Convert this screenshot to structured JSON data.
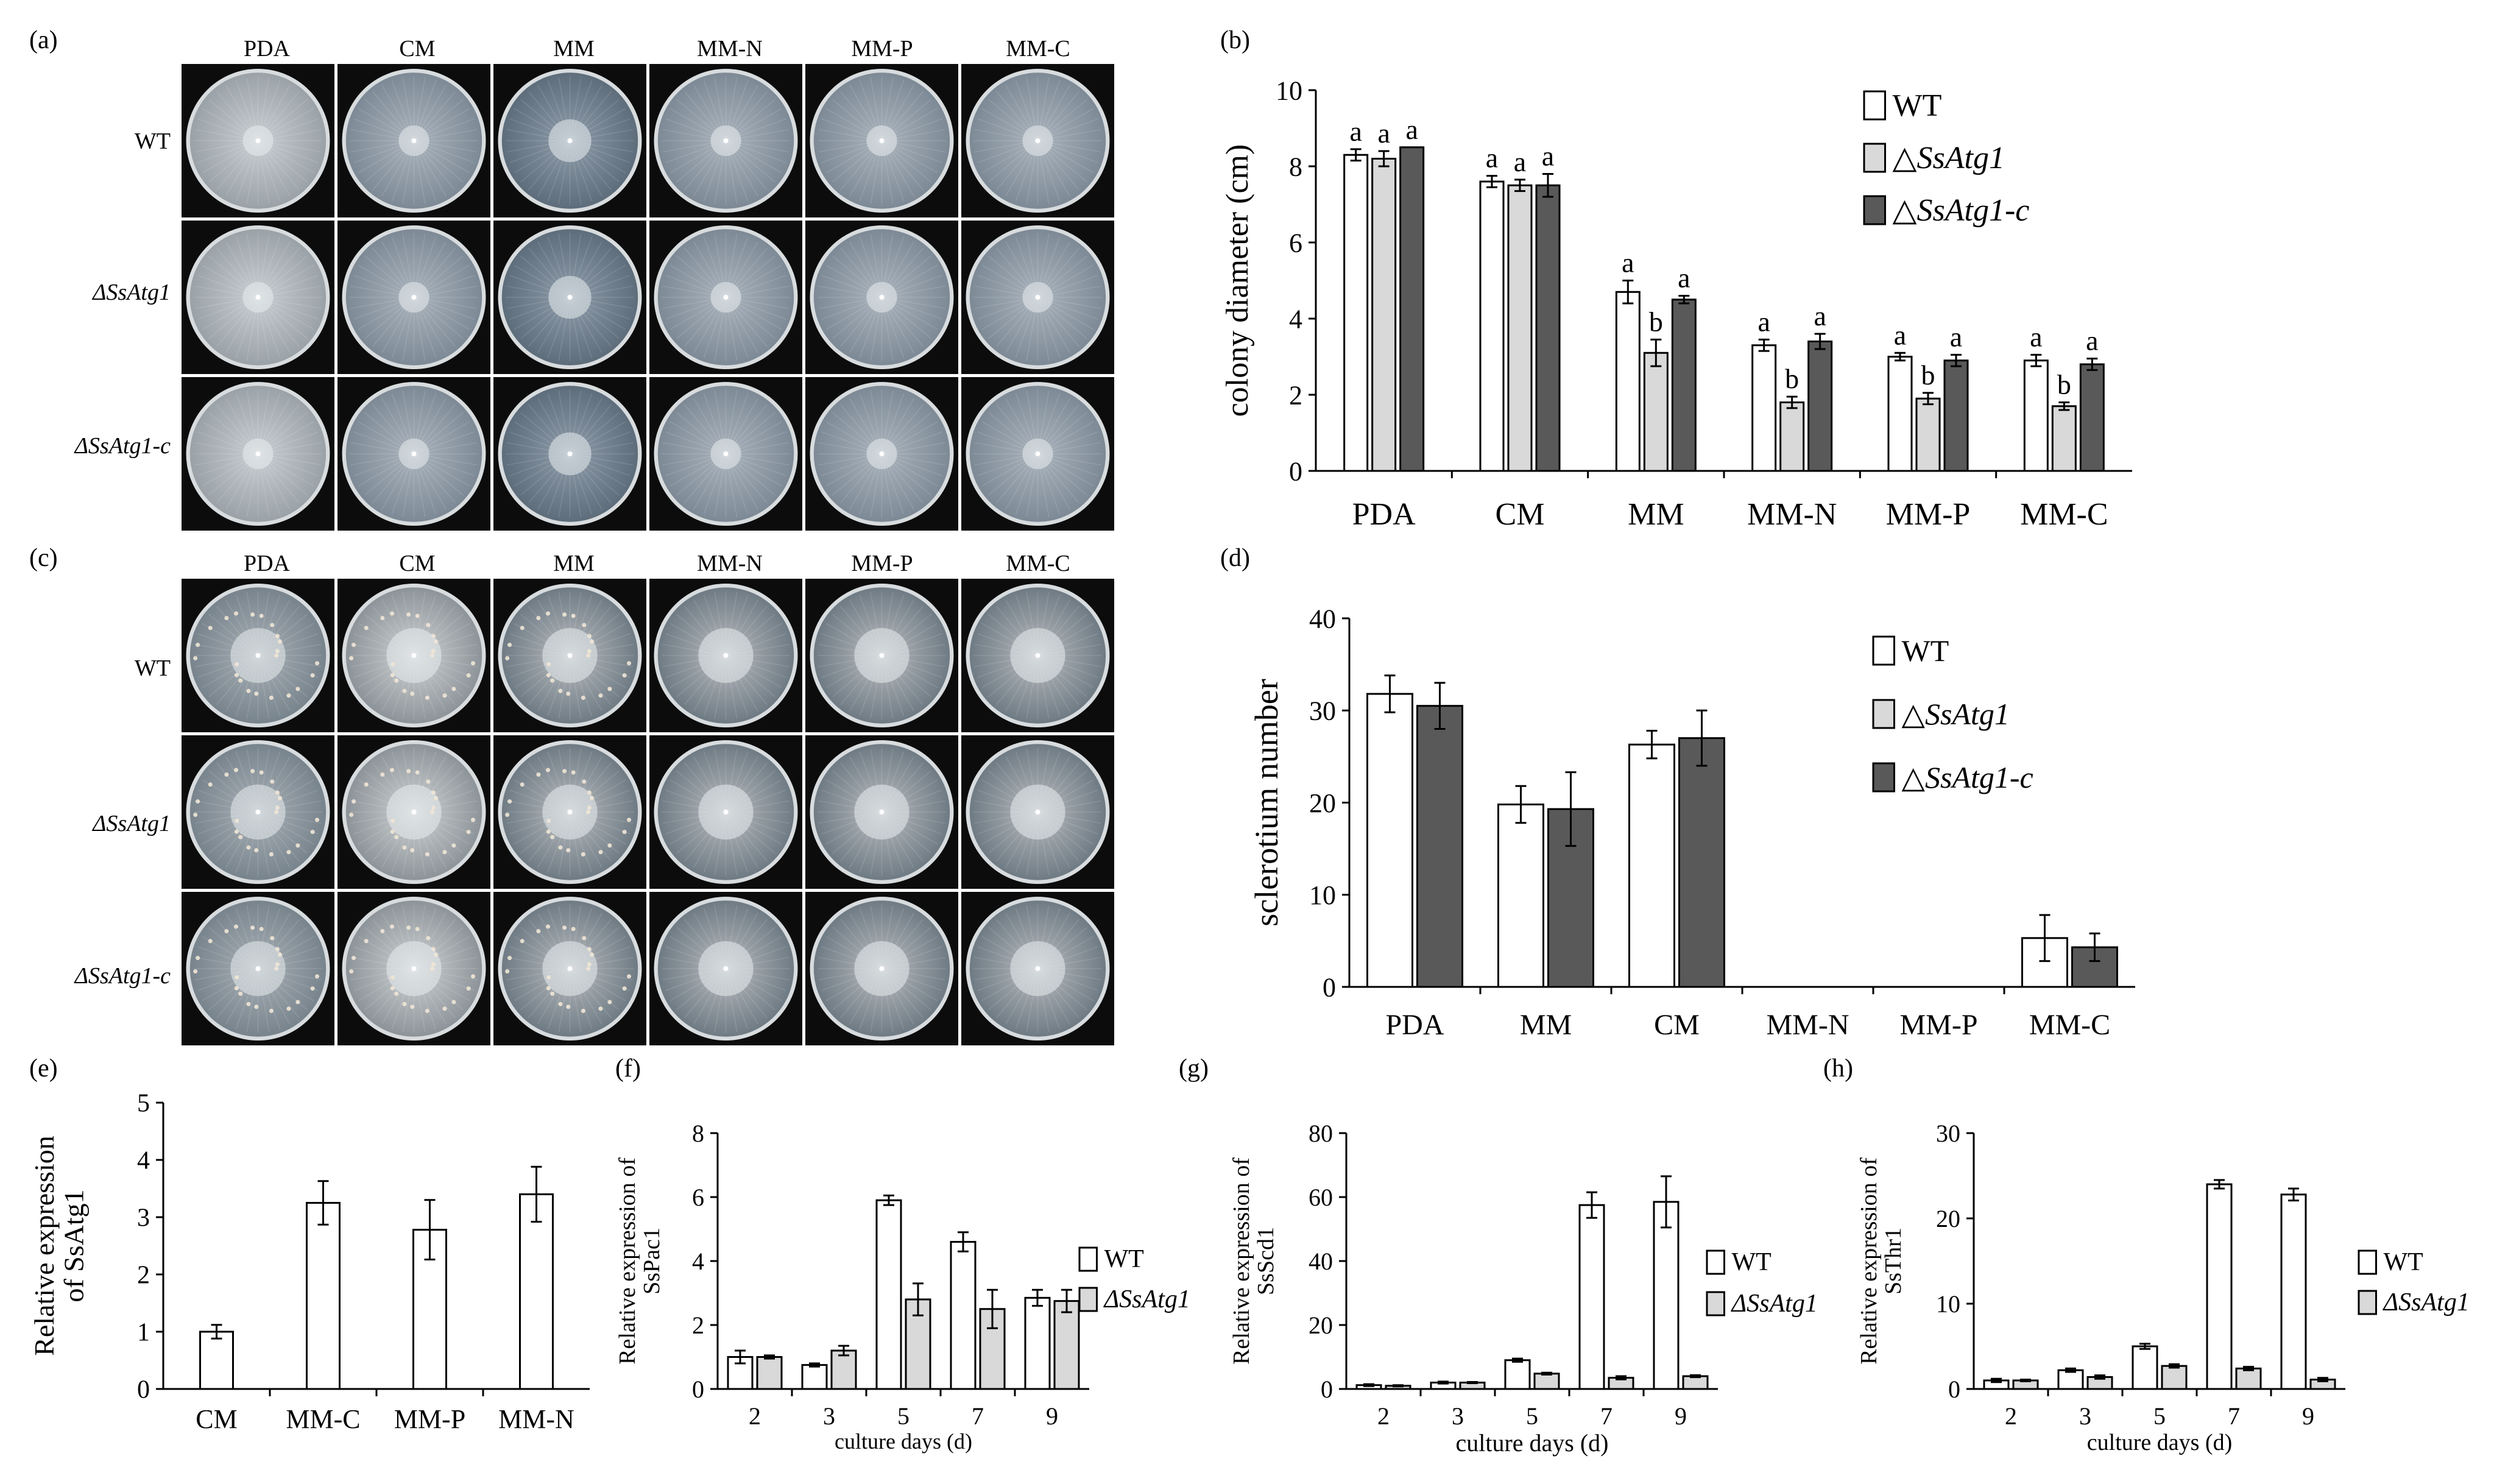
{
  "panels": {
    "a": {
      "label": "(a)"
    },
    "b": {
      "label": "(b)"
    },
    "c": {
      "label": "(c)"
    },
    "d": {
      "label": "(d)"
    },
    "e": {
      "label": "(e)"
    },
    "f": {
      "label": "(f)"
    },
    "g": {
      "label": "(g)"
    },
    "h": {
      "label": "(h)"
    }
  },
  "plates_a": {
    "columns": [
      "PDA",
      "CM",
      "MM",
      "MM-N",
      "MM-P",
      "MM-C"
    ],
    "rows": [
      "WT",
      "ΔSsAtg1",
      "ΔSsAtg1-c"
    ]
  },
  "plates_c": {
    "columns": [
      "PDA",
      "CM",
      "MM",
      "MM-N",
      "MM-P",
      "MM-C"
    ],
    "rows": [
      "WT",
      "ΔSsAtg1",
      "ΔSsAtg1-c"
    ]
  },
  "colors": {
    "wt": "#ffffff",
    "mutant": "#d9d9d9",
    "complement": "#595959",
    "outline": "#000000"
  },
  "chart_data": [
    {
      "panel": "b",
      "type": "bar",
      "ylabel": "colony diameter (cm)",
      "xlabel": "",
      "ylim": [
        0,
        10
      ],
      "yticks": [
        0,
        2,
        4,
        6,
        8,
        10
      ],
      "categories": [
        "PDA",
        "CM",
        "MM",
        "MM-N",
        "MM-P",
        "MM-C"
      ],
      "series": [
        {
          "name": "WT",
          "values": [
            8.3,
            7.6,
            4.7,
            3.3,
            3.0,
            2.9
          ],
          "errors": [
            0.15,
            0.15,
            0.3,
            0.15,
            0.1,
            0.15
          ],
          "letters": [
            "a",
            "a",
            "a",
            "a",
            "a",
            "a"
          ]
        },
        {
          "name": "△SsAtg1",
          "values": [
            8.2,
            7.5,
            3.1,
            1.8,
            1.9,
            1.7
          ],
          "errors": [
            0.2,
            0.15,
            0.35,
            0.15,
            0.15,
            0.1
          ],
          "letters": [
            "a",
            "a",
            "b",
            "b",
            "b",
            "b"
          ]
        },
        {
          "name": "△SsAtg1-c",
          "values": [
            8.5,
            7.5,
            4.5,
            3.4,
            2.9,
            2.8
          ],
          "errors": [
            0.0,
            0.3,
            0.1,
            0.2,
            0.15,
            0.15
          ],
          "letters": [
            "a",
            "a",
            "a",
            "a",
            "a",
            "a"
          ]
        }
      ],
      "legend": "top-right"
    },
    {
      "panel": "d",
      "type": "bar",
      "ylabel": "sclerotium number",
      "xlabel": "",
      "ylim": [
        0,
        40
      ],
      "yticks": [
        0,
        10,
        20,
        30,
        40
      ],
      "categories": [
        "PDA",
        "MM",
        "CM",
        "MM-N",
        "MM-P",
        "MM-C"
      ],
      "series": [
        {
          "name": "WT",
          "values": [
            31.8,
            19.8,
            26.3,
            0,
            0,
            5.3
          ],
          "errors": [
            2.0,
            2.0,
            1.5,
            0,
            0,
            2.5
          ]
        },
        {
          "name": "△SsAtg1",
          "values": [
            0,
            0,
            0,
            0,
            0,
            0
          ],
          "errors": [
            0,
            0,
            0,
            0,
            0,
            0
          ]
        },
        {
          "name": "△SsAtg1-c",
          "values": [
            30.5,
            19.3,
            27.0,
            0,
            0,
            4.3
          ],
          "errors": [
            2.5,
            4.0,
            3.0,
            0,
            0,
            1.5
          ]
        }
      ],
      "legend": "top-right"
    },
    {
      "panel": "e",
      "type": "bar",
      "ylabel_line1": "Relative expression",
      "ylabel_line2": "of SsAtg1",
      "xlabel": "",
      "ylim": [
        0,
        5
      ],
      "yticks": [
        0,
        1,
        2,
        3,
        4,
        5
      ],
      "categories": [
        "CM",
        "MM-C",
        "MM-P",
        "MM-N"
      ],
      "values": [
        1.0,
        3.25,
        2.78,
        3.4
      ],
      "errors": [
        0.12,
        0.38,
        0.52,
        0.48
      ]
    },
    {
      "panel": "f",
      "type": "bar",
      "ylabel_line1": "Relative expression of",
      "ylabel_line2": "SsPac1",
      "xlabel": "culture days (d)",
      "ylim": [
        0,
        8
      ],
      "yticks": [
        0,
        2,
        4,
        6,
        8
      ],
      "categories": [
        "2",
        "3",
        "5",
        "7",
        "9"
      ],
      "series": [
        {
          "name": "WT",
          "values": [
            1.0,
            0.75,
            5.9,
            4.6,
            2.85
          ],
          "errors": [
            0.2,
            0.05,
            0.15,
            0.3,
            0.25
          ]
        },
        {
          "name": "ΔSsAtg1",
          "values": [
            1.0,
            1.2,
            2.8,
            2.5,
            2.75
          ],
          "errors": [
            0.05,
            0.15,
            0.5,
            0.6,
            0.35
          ]
        }
      ],
      "legend": "right"
    },
    {
      "panel": "g",
      "type": "bar",
      "ylabel_line1": "Relative expression of",
      "ylabel_line2": "SsScd1",
      "xlabel": "culture days (d)",
      "ylim": [
        0,
        80
      ],
      "yticks": [
        0,
        20,
        40,
        60,
        80
      ],
      "categories": [
        "2",
        "3",
        "5",
        "7",
        "9"
      ],
      "series": [
        {
          "name": "WT",
          "values": [
            1.2,
            2.0,
            9.0,
            57.5,
            58.5
          ],
          "errors": [
            0.3,
            0.3,
            0.5,
            4.0,
            8.0
          ]
        },
        {
          "name": "ΔSsAtg1",
          "values": [
            1.0,
            2.0,
            4.8,
            3.5,
            4.0
          ],
          "errors": [
            0.2,
            0.2,
            0.3,
            0.5,
            0.3
          ]
        }
      ],
      "legend": "right"
    },
    {
      "panel": "h",
      "type": "bar",
      "ylabel_line1": "Relative expression of",
      "ylabel_line2": "SsThr1",
      "xlabel": "culture days (d)",
      "ylim": [
        0,
        30
      ],
      "yticks": [
        0,
        10,
        20,
        30
      ],
      "categories": [
        "2",
        "3",
        "5",
        "7",
        "9"
      ],
      "series": [
        {
          "name": "WT",
          "values": [
            1.0,
            2.2,
            5.0,
            24.0,
            22.8
          ],
          "errors": [
            0.2,
            0.2,
            0.3,
            0.5,
            0.7
          ]
        },
        {
          "name": "ΔSsAtg1",
          "values": [
            1.0,
            1.4,
            2.7,
            2.4,
            1.1
          ],
          "errors": [
            0.1,
            0.2,
            0.2,
            0.2,
            0.2
          ]
        }
      ],
      "legend": "right"
    }
  ]
}
